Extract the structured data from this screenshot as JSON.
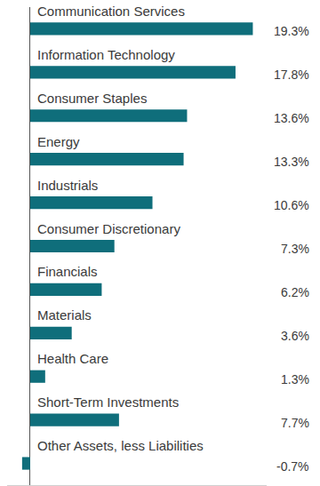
{
  "chart_data": {
    "type": "bar",
    "orientation": "horizontal",
    "categories": [
      "Communication Services",
      "Information Technology",
      "Consumer Staples",
      "Energy",
      "Industrials",
      "Consumer Discretionary",
      "Financials",
      "Materials",
      "Health Care",
      "Short-Term Investments",
      "Other Assets, less Liabilities"
    ],
    "values": [
      19.3,
      17.8,
      13.6,
      13.3,
      10.6,
      7.3,
      6.2,
      3.6,
      1.3,
      7.7,
      -0.7
    ],
    "value_labels": [
      "19.3%",
      "17.8%",
      "13.6%",
      "13.3%",
      "10.6%",
      "7.3%",
      "6.2%",
      "3.6%",
      "1.3%",
      "7.7%",
      "-0.7%"
    ],
    "color": "#0f6e7b",
    "data_labels": true,
    "tick_labels": false,
    "xlim": [
      -2,
      20.5
    ],
    "xticks": [
      0
    ],
    "grid": true
  }
}
